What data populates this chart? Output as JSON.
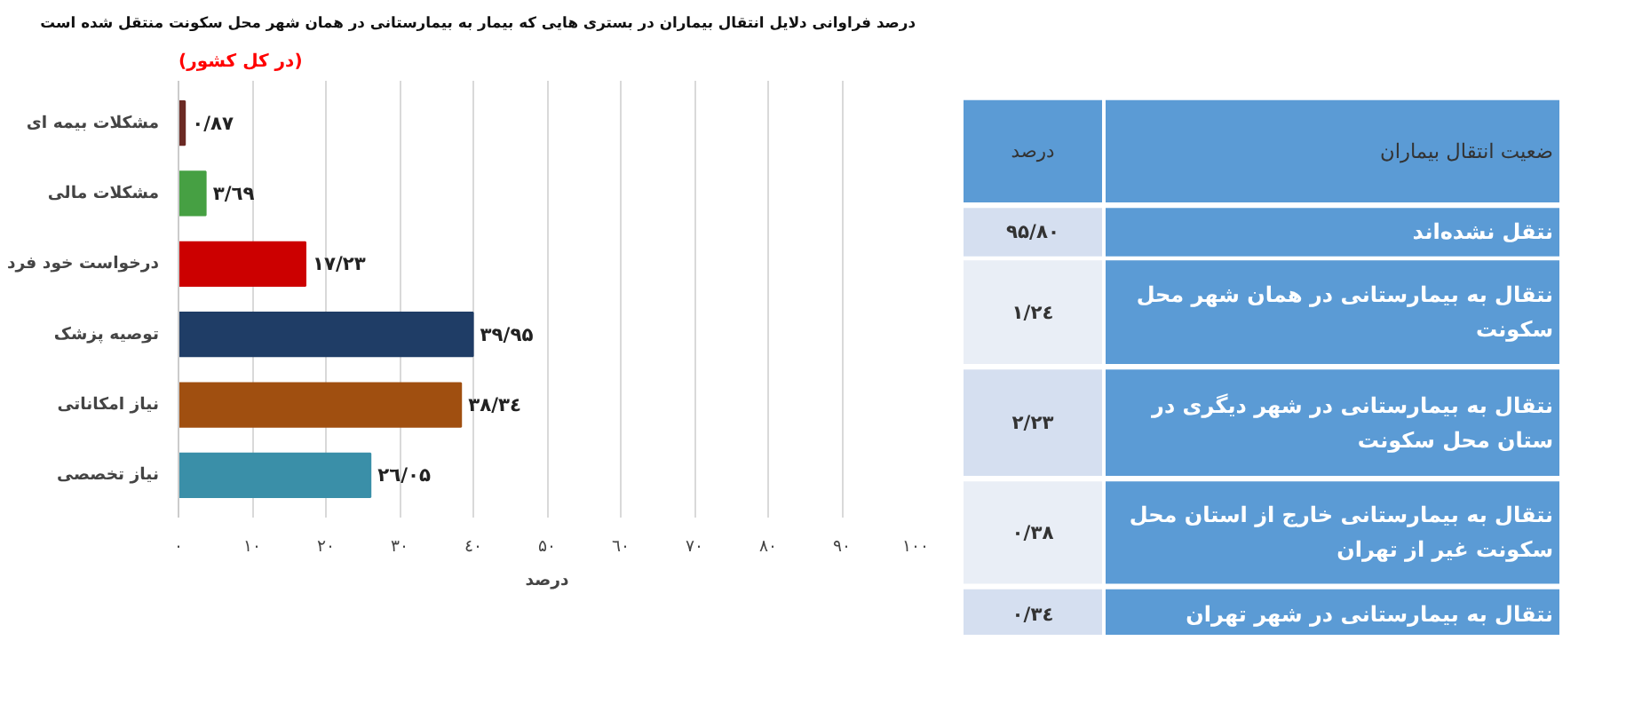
{
  "chart_data": [
    {
      "type": "bar",
      "orientation": "horizontal",
      "title": "درصد فراوانی دلایل انتقال بیماران در بستری هایی که بیمار به بیمارستانی در همان شهر محل سکونت منتقل شده است",
      "subtitle": "(در کل کشور)",
      "xlabel": "درصد",
      "categories": [
        "مشکلات بیمه ای",
        "مشکلات مالی",
        "درخواست خود فرد",
        "توصیه پزشک",
        "نیاز امکاناتی",
        "نیاز تخصصی"
      ],
      "values": [
        0.87,
        3.69,
        17.23,
        39.95,
        38.34,
        26.05
      ],
      "colors": [
        "#6b2a24",
        "#46a043",
        "#cc0000",
        "#1f3d66",
        "#a04f10",
        "#3a8fa8"
      ],
      "value_labels": [
        "۰/۸۷",
        "۳/٦۹",
        "۱۷/۲۳",
        "۳۹/۹۵",
        "۳۸/۳٤",
        "۲٦/۰۵"
      ],
      "xlim": [
        0,
        100
      ],
      "xticks": [
        {
          "value": 0,
          "label": "۰"
        },
        {
          "value": 10,
          "label": "۱۰"
        },
        {
          "value": 20,
          "label": "۲۰"
        },
        {
          "value": 30,
          "label": "۳۰"
        },
        {
          "value": 40,
          "label": "٤۰"
        },
        {
          "value": 50,
          "label": "۵۰"
        },
        {
          "value": 60,
          "label": "٦۰"
        },
        {
          "value": 70,
          "label": "۷۰"
        },
        {
          "value": 80,
          "label": "۸۰"
        },
        {
          "value": 90,
          "label": "۹۰"
        },
        {
          "value": 100,
          "label": "۱۰۰"
        }
      ],
      "grid": "x"
    },
    {
      "type": "other",
      "annotations": [
        "درصد",
        "ضعیت انتقال بیماران",
        "۹۵/۸۰",
        "نتقل نشده‌اند",
        "۱/۲٤",
        "نتقال به بیمارستانی در همان شهر محل\nسکونت",
        "۲/۲۳",
        "نتقال به بیمارستانی در شهر دیگری در\nستان محل سکونت",
        "۰/۳۸",
        "نتقال به بیمارستانی خارج از استان محل\nسکونت غیر از تهران",
        "۰/۳٤",
        "نتقال به بیمارستانی در شهر تهران"
      ]
    }
  ]
}
